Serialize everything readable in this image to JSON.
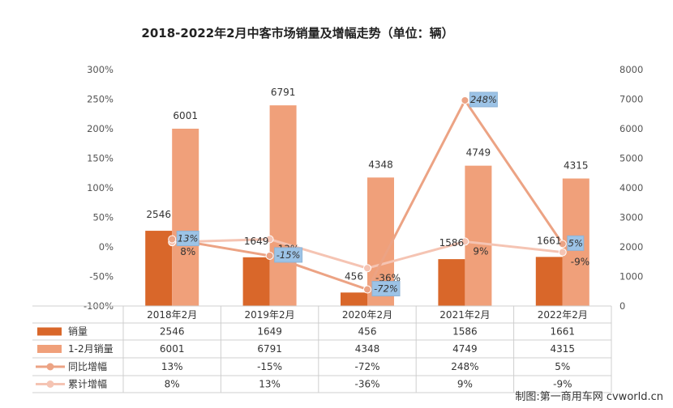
{
  "chart_data": {
    "type": "bar",
    "title": "2018-2022年2月中客市场销量及增幅走势（单位：辆）",
    "categories": [
      "2018年2月",
      "2019年2月",
      "2020年2月",
      "2021年2月",
      "2022年2月"
    ],
    "y_left": {
      "ticks": [
        "300%",
        "250%",
        "200%",
        "150%",
        "100%",
        "50%",
        "0%",
        "-50%",
        "-100%"
      ],
      "range": [
        -100,
        300
      ]
    },
    "y_right": {
      "ticks": [
        "8000",
        "7000",
        "6000",
        "5000",
        "4000",
        "3000",
        "2000",
        "1000",
        "0"
      ],
      "range": [
        0,
        8000
      ]
    },
    "series": [
      {
        "name": "销量",
        "kind": "bar",
        "axis": "right",
        "color": "#d9672a",
        "values": [
          2546,
          1649,
          456,
          1586,
          1661
        ],
        "labels": [
          "2546",
          "1649",
          "456",
          "1586",
          "1661"
        ]
      },
      {
        "name": "1-2月销量",
        "kind": "bar",
        "axis": "right",
        "color": "#f0a07a",
        "values": [
          6001,
          6791,
          4348,
          4749,
          4315
        ],
        "labels": [
          "6001",
          "6791",
          "4348",
          "4749",
          "4315"
        ]
      },
      {
        "name": "同比增幅",
        "kind": "line",
        "axis": "left",
        "color": "#eca384",
        "values": [
          13,
          -15,
          -72,
          248,
          5
        ],
        "labels": [
          "13%",
          "-15%",
          "-72%",
          "248%",
          "5%"
        ]
      },
      {
        "name": "累计增幅",
        "kind": "line",
        "axis": "left",
        "color": "#f5c4b3",
        "values": [
          8,
          13,
          -36,
          9,
          -9
        ],
        "labels": [
          "8%",
          "13%",
          "-36%",
          "9%",
          "-9%"
        ]
      }
    ],
    "grid": false,
    "data_table": true
  },
  "watermark": "制图:第一商用车网 cvworld.cn"
}
